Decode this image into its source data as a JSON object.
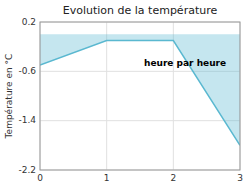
{
  "chart_data": {
    "type": "area",
    "title": "Evolution de la température",
    "y_label": "Température en °C",
    "annotations": [
      "heure par heure"
    ],
    "x": [
      0,
      1,
      2,
      3
    ],
    "values": [
      -0.5,
      -0.1,
      -0.1,
      -1.8
    ],
    "color": "#5ab8d0",
    "xlim": [
      0,
      3
    ],
    "ylim": [
      -2.2,
      0.2
    ],
    "xticks": [
      0,
      1,
      2,
      3
    ],
    "yticks": [
      0.2,
      -0.6,
      -1.4,
      -2.2
    ],
    "grid": true
  }
}
